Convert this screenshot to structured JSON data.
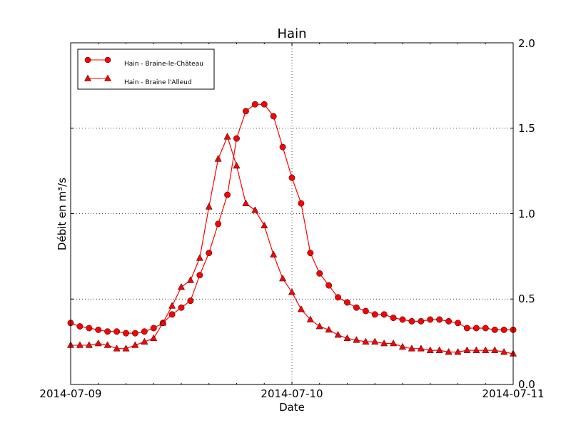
{
  "chart_data": {
    "type": "line",
    "title": "Hain",
    "xlabel": "Date",
    "ylabel": "Débit en m³/s",
    "xlim": [
      "2014-07-09 00:00",
      "2014-07-11 00:00"
    ],
    "ylim": [
      0.0,
      2.0
    ],
    "x_tick_labels": [
      "2014-07-09",
      "2014-07-10",
      "2014-07-11"
    ],
    "y_tick_labels": [
      "0.0",
      "0.5",
      "1.0",
      "1.5",
      "2.0"
    ],
    "y_ticks": [
      0.0,
      0.5,
      1.0,
      1.5,
      2.0
    ],
    "y_axis_side": "right",
    "grid": "dotted, major ticks only",
    "legend_placement": "top-left",
    "color": "#ff0000",
    "x": [
      "2014-07-09 00:00",
      "2014-07-09 01:00",
      "2014-07-09 02:00",
      "2014-07-09 03:00",
      "2014-07-09 04:00",
      "2014-07-09 05:00",
      "2014-07-09 06:00",
      "2014-07-09 07:00",
      "2014-07-09 08:00",
      "2014-07-09 09:00",
      "2014-07-09 10:00",
      "2014-07-09 11:00",
      "2014-07-09 12:00",
      "2014-07-09 13:00",
      "2014-07-09 14:00",
      "2014-07-09 15:00",
      "2014-07-09 16:00",
      "2014-07-09 17:00",
      "2014-07-09 18:00",
      "2014-07-09 19:00",
      "2014-07-09 20:00",
      "2014-07-09 21:00",
      "2014-07-09 22:00",
      "2014-07-09 23:00",
      "2014-07-10 00:00",
      "2014-07-10 01:00",
      "2014-07-10 02:00",
      "2014-07-10 03:00",
      "2014-07-10 04:00",
      "2014-07-10 05:00",
      "2014-07-10 06:00",
      "2014-07-10 07:00",
      "2014-07-10 08:00",
      "2014-07-10 09:00",
      "2014-07-10 10:00",
      "2014-07-10 11:00",
      "2014-07-10 12:00",
      "2014-07-10 13:00",
      "2014-07-10 14:00",
      "2014-07-10 15:00",
      "2014-07-10 16:00",
      "2014-07-10 17:00",
      "2014-07-10 18:00",
      "2014-07-10 19:00",
      "2014-07-10 20:00",
      "2014-07-10 21:00",
      "2014-07-10 22:00",
      "2014-07-10 23:00",
      "2014-07-11 00:00"
    ],
    "series": [
      {
        "name": "Hain - Braine-le-Château",
        "marker": "circle",
        "values": [
          0.36,
          0.34,
          0.33,
          0.32,
          0.31,
          0.31,
          0.3,
          0.3,
          0.31,
          0.33,
          0.36,
          0.41,
          0.45,
          0.49,
          0.64,
          0.77,
          0.94,
          1.11,
          1.44,
          1.6,
          1.64,
          1.64,
          1.57,
          1.39,
          1.21,
          1.06,
          0.77,
          0.65,
          0.58,
          0.51,
          0.48,
          0.45,
          0.43,
          0.41,
          0.41,
          0.39,
          0.38,
          0.37,
          0.37,
          0.38,
          0.38,
          0.37,
          0.36,
          0.33,
          0.33,
          0.33,
          0.32,
          0.32,
          0.32
        ]
      },
      {
        "name": "Hain - Braine l'Alleud",
        "marker": "triangle",
        "values": [
          0.23,
          0.23,
          0.23,
          0.24,
          0.23,
          0.21,
          0.21,
          0.23,
          0.25,
          0.27,
          0.36,
          0.46,
          0.57,
          0.61,
          0.74,
          1.04,
          1.32,
          1.45,
          1.28,
          1.06,
          1.02,
          0.93,
          0.76,
          0.62,
          0.54,
          0.44,
          0.38,
          0.34,
          0.32,
          0.29,
          0.27,
          0.26,
          0.25,
          0.25,
          0.24,
          0.24,
          0.22,
          0.21,
          0.21,
          0.2,
          0.2,
          0.19,
          0.19,
          0.2,
          0.2,
          0.2,
          0.2,
          0.19,
          0.18
        ]
      }
    ]
  }
}
